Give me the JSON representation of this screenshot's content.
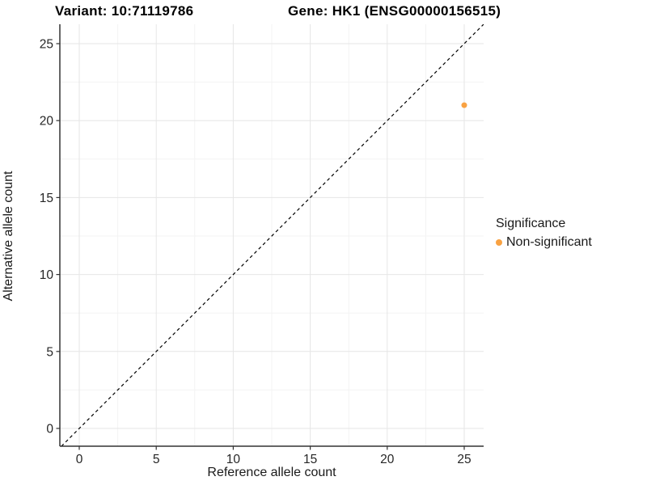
{
  "chart_data": {
    "type": "scatter",
    "title_left": "Variant: 10:71119786",
    "title_right": "Gene: HK1 (ENSG00000156515)",
    "xlabel": "Reference allele count",
    "ylabel": "Alternative allele count",
    "x_ticks": [
      0,
      5,
      10,
      15,
      20,
      25
    ],
    "y_ticks": [
      0,
      5,
      10,
      15,
      20,
      25
    ],
    "x_minor_ticks": [
      2.5,
      7.5,
      12.5,
      17.5,
      22.5
    ],
    "y_minor_ticks": [
      2.5,
      7.5,
      12.5,
      17.5,
      22.5
    ],
    "xlim": [
      -1.26,
      26.26
    ],
    "ylim": [
      -1.26,
      26.26
    ],
    "grid": true,
    "reference_line": {
      "equation": "y = x",
      "style": "dashed",
      "color": "#000000"
    },
    "series": [
      {
        "name": "Non-significant",
        "points": [
          {
            "x": 25,
            "y": 21
          }
        ]
      }
    ],
    "legend": {
      "title": "Significance",
      "position": "right",
      "items": [
        {
          "label": "Non-significant",
          "color": "#F9A242"
        }
      ]
    },
    "colors": {
      "point": "#F9A242",
      "axis_line": "#333333",
      "tick_text": "#262626",
      "grid_major": "#E6E6E6",
      "grid_minor": "#F3F3F3",
      "background": "#FFFFFF"
    }
  }
}
